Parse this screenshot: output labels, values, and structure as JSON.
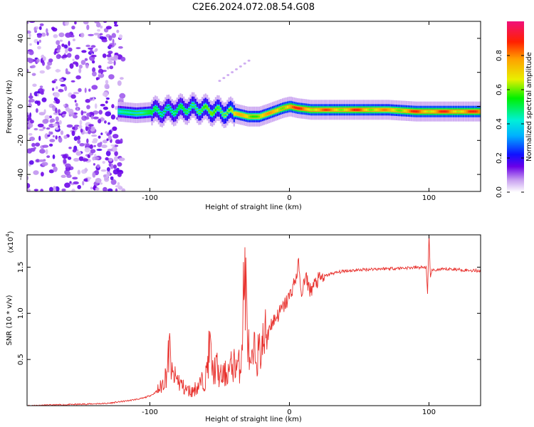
{
  "title": "C2E6.2024.072.08.54.G08",
  "chart_data": [
    {
      "type": "heatmap",
      "xlabel": "Height of straight line (km)",
      "ylabel": "Frequency (Hz)",
      "xlim": [
        -188,
        137
      ],
      "ylim": [
        -50,
        50
      ],
      "xticks": [
        -100,
        0,
        100
      ],
      "yticks": [
        -40,
        -20,
        0,
        20,
        40
      ],
      "colorbar": {
        "label": "Normalized spectral amplitude",
        "range": [
          0,
          1
        ],
        "ticks": [
          0.0,
          0.2,
          0.4,
          0.6,
          0.8
        ]
      },
      "ridge_x": [
        -123,
        -110,
        -95,
        -80,
        -70,
        -60,
        -50,
        -40,
        -30,
        -22,
        -15,
        -5,
        0,
        5,
        15,
        30,
        50,
        70,
        90,
        110,
        137
      ],
      "ridge_y": [
        -3,
        -4,
        -3,
        -2,
        -1,
        -2,
        -3,
        -4,
        -6,
        -6,
        -4,
        -1,
        0,
        -1,
        -2,
        -2,
        -2,
        -2,
        -3,
        -3,
        -3
      ],
      "ridge_amplitude": [
        0.4,
        0.55,
        0.5,
        0.5,
        0.55,
        0.6,
        0.6,
        0.75,
        0.8,
        0.75,
        0.8,
        0.85,
        0.9,
        0.9,
        0.9,
        0.85,
        0.9,
        0.8,
        0.9,
        0.9,
        0.9
      ],
      "noise_region_x": [
        -188,
        -123
      ],
      "annotations": [
        "Faint feature rising from about (-50, 15) to (-28, 28)"
      ]
    },
    {
      "type": "line",
      "xlabel": "Height of straight line (km)",
      "ylabel": "SNR (10 * v/v)",
      "y_scale_label": "(x10",
      "y_scale_exponent": "4",
      "xlim": [
        -188,
        137
      ],
      "ylim": [
        0,
        18500
      ],
      "xticks": [
        -100,
        0,
        100
      ],
      "yticks": [
        0.5,
        1.0,
        1.5
      ],
      "ytick_labels": [
        "0.5",
        "1.0",
        "1.5"
      ],
      "series": [
        {
          "color": "#e8302c",
          "x": [
            -188,
            -160,
            -130,
            -115,
            -105,
            -98,
            -92,
            -88,
            -86,
            -84,
            -80,
            -75,
            -70,
            -65,
            -60,
            -57,
            -55,
            -52,
            -50,
            -45,
            -40,
            -35,
            -32,
            -30,
            -28,
            -25,
            -22,
            -18,
            -15,
            -10,
            -5,
            0,
            5,
            7,
            8,
            10,
            12,
            15,
            20,
            25,
            30,
            40,
            50,
            60,
            70,
            80,
            90,
            98,
            99,
            100,
            101,
            102,
            105,
            110,
            115,
            120,
            125,
            130,
            137
          ],
          "y": [
            0,
            100,
            250,
            550,
            800,
            1200,
            2000,
            3500,
            6200,
            3200,
            2800,
            1800,
            1500,
            2200,
            3000,
            6600,
            3600,
            4200,
            3000,
            3500,
            4500,
            4200,
            14800,
            8000,
            3500,
            5800,
            5500,
            7000,
            8500,
            9500,
            10500,
            11800,
            14000,
            15500,
            12000,
            13000,
            13800,
            12500,
            13500,
            14000,
            14300,
            14600,
            14700,
            14800,
            14850,
            14900,
            14950,
            15000,
            12000,
            18500,
            14000,
            14600,
            14700,
            14750,
            14800,
            14750,
            14700,
            14650,
            14600
          ]
        }
      ]
    }
  ]
}
